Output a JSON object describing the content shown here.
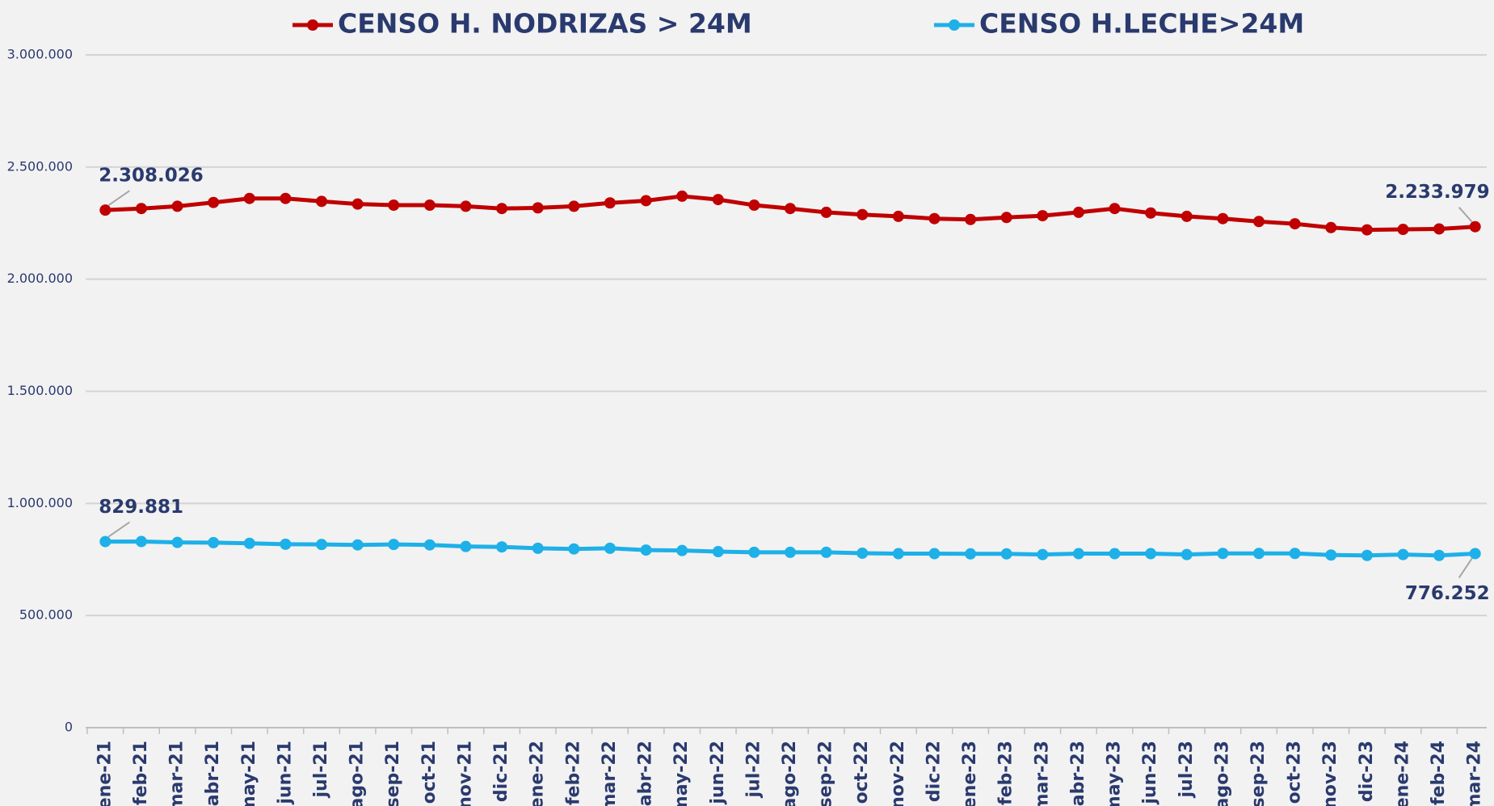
{
  "chart_data": {
    "type": "line",
    "categories": [
      "ene-21",
      "feb-21",
      "mar-21",
      "abr-21",
      "may-21",
      "jun-21",
      "jul-21",
      "ago-21",
      "sep-21",
      "oct-21",
      "nov-21",
      "dic-21",
      "ene-22",
      "feb-22",
      "mar-22",
      "abr-22",
      "may-22",
      "jun-22",
      "jul-22",
      "ago-22",
      "sep-22",
      "oct-22",
      "nov-22",
      "dic-22",
      "ene-23",
      "feb-23",
      "mar-23",
      "abr-23",
      "may-23",
      "jun-23",
      "jul-23",
      "ago-23",
      "sep-23",
      "oct-23",
      "nov-23",
      "dic-23",
      "ene-24",
      "feb-24",
      "mar-24"
    ],
    "series": [
      {
        "name": "CENSO H. NODRIZAS > 24M",
        "color": "#c00000",
        "values": [
          2308026,
          2315000,
          2325000,
          2342000,
          2360000,
          2360000,
          2347000,
          2335000,
          2330000,
          2330000,
          2325000,
          2315000,
          2318000,
          2325000,
          2340000,
          2350000,
          2370000,
          2355000,
          2330000,
          2315000,
          2298000,
          2288000,
          2280000,
          2270000,
          2266000,
          2275000,
          2283000,
          2298000,
          2315000,
          2295000,
          2280000,
          2270000,
          2257000,
          2247000,
          2230000,
          2220000,
          2222000,
          2224000,
          2233979
        ],
        "value_labels": [
          "2.308.026",
          null,
          null,
          null,
          null,
          null,
          null,
          null,
          null,
          null,
          null,
          null,
          null,
          null,
          null,
          null,
          null,
          null,
          null,
          null,
          null,
          null,
          null,
          null,
          null,
          null,
          null,
          null,
          null,
          null,
          null,
          null,
          null,
          null,
          null,
          null,
          null,
          null,
          "2.233.979"
        ]
      },
      {
        "name": "CENSO H.LECHE>24M",
        "color": "#1eb0e8",
        "values": [
          829881,
          830000,
          826000,
          825000,
          822000,
          818000,
          817000,
          815000,
          817000,
          815000,
          808000,
          806000,
          800000,
          797000,
          800000,
          792000,
          790000,
          785000,
          782000,
          782000,
          782000,
          778000,
          776000,
          776000,
          775000,
          775000,
          772000,
          776000,
          776000,
          776000,
          772000,
          777000,
          777000,
          777000,
          770000,
          768000,
          772000,
          768000,
          776252
        ],
        "value_labels": [
          "829.881",
          null,
          null,
          null,
          null,
          null,
          null,
          null,
          null,
          null,
          null,
          null,
          null,
          null,
          null,
          null,
          null,
          null,
          null,
          null,
          null,
          null,
          null,
          null,
          null,
          null,
          null,
          null,
          null,
          null,
          null,
          null,
          null,
          null,
          null,
          null,
          null,
          null,
          "776.252"
        ]
      }
    ],
    "ylim": [
      0,
      3000000
    ],
    "yticks": [
      0,
      {
        "value": 500000,
        "label": "500.000"
      },
      {
        "value": 1000000,
        "label": "1.000.000"
      },
      {
        "value": 1500000,
        "label": "1.500.000"
      },
      {
        "value": 2000000,
        "label": "2.000.000"
      },
      {
        "value": 2500000,
        "label": "2.500.000"
      },
      {
        "value": 3000000,
        "label": "3.000.000"
      }
    ],
    "grid": true,
    "legend": "top"
  }
}
